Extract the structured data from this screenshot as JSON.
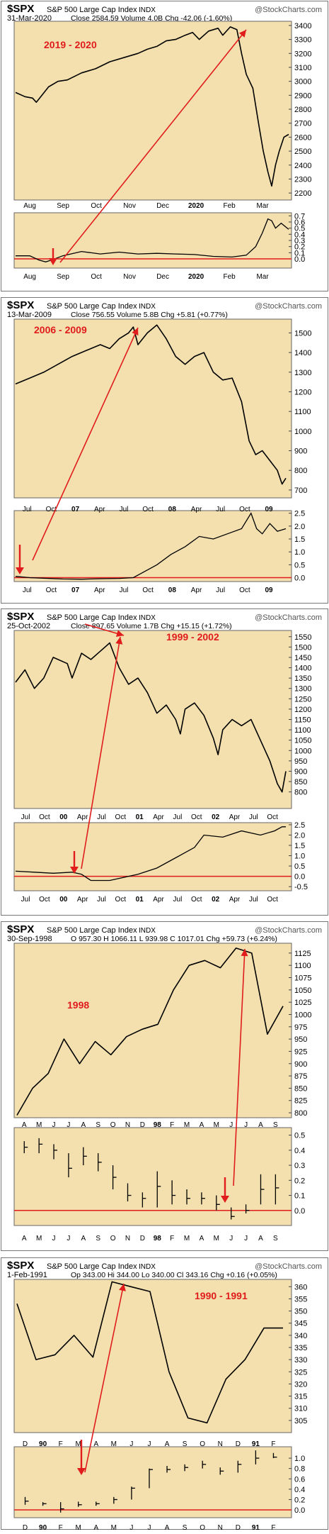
{
  "chart_data": [
    {
      "type": "line",
      "header": {
        "symbol": "$SPX",
        "name": "S&P 500 Large Cap Index",
        "exchange": "INDX",
        "source": "@StockCharts.com",
        "date": "31-Mar-2020",
        "quote": "Close 2584.59  Volume 4.0B  Chg -42.06 (-1.60%)"
      },
      "annotation": "2019 - 2020",
      "price": {
        "ylim": [
          2150,
          3430
        ],
        "ticks": [
          "2200",
          "2300",
          "2400",
          "2500",
          "2600",
          "2700",
          "2800",
          "2900",
          "3000",
          "3100",
          "3200",
          "3300",
          "3400"
        ],
        "x_labels": [
          "Aug",
          "Sep",
          "Oct",
          "Nov",
          "Dec",
          "2020",
          "Feb",
          "Mar"
        ],
        "series": [
          [
            0,
            2920
          ],
          [
            10,
            2890
          ],
          [
            18,
            2880
          ],
          [
            22,
            2850
          ],
          [
            28,
            2900
          ],
          [
            35,
            2960
          ],
          [
            45,
            3000
          ],
          [
            55,
            3010
          ],
          [
            70,
            3060
          ],
          [
            85,
            3090
          ],
          [
            100,
            3140
          ],
          [
            115,
            3170
          ],
          [
            130,
            3200
          ],
          [
            140,
            3230
          ],
          [
            150,
            3250
          ],
          [
            160,
            3290
          ],
          [
            170,
            3300
          ],
          [
            180,
            3330
          ],
          [
            188,
            3350
          ],
          [
            195,
            3300
          ],
          [
            205,
            3360
          ],
          [
            215,
            3380
          ],
          [
            220,
            3330
          ],
          [
            228,
            3390
          ],
          [
            235,
            3370
          ],
          [
            240,
            3200
          ],
          [
            245,
            3050
          ],
          [
            252,
            2950
          ],
          [
            258,
            2700
          ],
          [
            263,
            2500
          ],
          [
            268,
            2350
          ],
          [
            272,
            2250
          ],
          [
            276,
            2400
          ],
          [
            280,
            2500
          ],
          [
            285,
            2600
          ],
          [
            290,
            2620
          ]
        ]
      },
      "indicator": {
        "ylim": [
          -0.15,
          0.75
        ],
        "ticks": [
          "0.0",
          "0.1",
          "0.2",
          "0.3",
          "0.4",
          "0.5",
          "0.6",
          "0.7"
        ],
        "x_labels": [
          "Aug",
          "Sep",
          "Oct",
          "Nov",
          "Dec",
          "2020",
          "Feb",
          "Mar"
        ],
        "reference": 0,
        "series": [
          [
            0,
            0.05
          ],
          [
            15,
            0.05
          ],
          [
            25,
            -0.02
          ],
          [
            32,
            -0.05
          ],
          [
            40,
            -0.01
          ],
          [
            50,
            0.05
          ],
          [
            70,
            0.12
          ],
          [
            90,
            0.08
          ],
          [
            110,
            0.11
          ],
          [
            130,
            0.08
          ],
          [
            150,
            0.09
          ],
          [
            170,
            0.08
          ],
          [
            190,
            0.07
          ],
          [
            210,
            0.04
          ],
          [
            230,
            0.03
          ],
          [
            245,
            0.06
          ],
          [
            255,
            0.2
          ],
          [
            262,
            0.42
          ],
          [
            268,
            0.65
          ],
          [
            272,
            0.62
          ],
          [
            276,
            0.5
          ],
          [
            282,
            0.58
          ],
          [
            290,
            0.48
          ]
        ]
      }
    },
    {
      "type": "line",
      "header": {
        "symbol": "$SPX",
        "name": "S&P 500 Large Cap Index",
        "exchange": "INDX",
        "source": "@StockCharts.com",
        "date": "13-Mar-2009",
        "quote": "Close 756.55  Volume 5.8B  Chg +5.81 (+0.77%)"
      },
      "annotation": "2006 - 2009",
      "price": {
        "ylim": [
          660,
          1570
        ],
        "ticks": [
          "700",
          "800",
          "900",
          "1000",
          "1100",
          "1200",
          "1300",
          "1400",
          "1500"
        ],
        "x_labels": [
          "Jul",
          "Oct",
          "07",
          "Apr",
          "Jul",
          "Oct",
          "08",
          "Apr",
          "Jul",
          "Oct",
          "09"
        ],
        "series": [
          [
            0,
            1240
          ],
          [
            15,
            1270
          ],
          [
            30,
            1300
          ],
          [
            45,
            1340
          ],
          [
            60,
            1380
          ],
          [
            75,
            1410
          ],
          [
            90,
            1440
          ],
          [
            100,
            1420
          ],
          [
            110,
            1470
          ],
          [
            120,
            1500
          ],
          [
            125,
            1530
          ],
          [
            130,
            1440
          ],
          [
            140,
            1500
          ],
          [
            150,
            1540
          ],
          [
            160,
            1470
          ],
          [
            170,
            1380
          ],
          [
            180,
            1340
          ],
          [
            190,
            1380
          ],
          [
            200,
            1400
          ],
          [
            210,
            1300
          ],
          [
            220,
            1260
          ],
          [
            230,
            1270
          ],
          [
            240,
            1150
          ],
          [
            248,
            950
          ],
          [
            255,
            880
          ],
          [
            262,
            900
          ],
          [
            270,
            850
          ],
          [
            278,
            800
          ],
          [
            283,
            730
          ],
          [
            287,
            760
          ]
        ]
      },
      "indicator": {
        "ylim": [
          -0.15,
          2.6
        ],
        "ticks": [
          "0.0",
          "0.5",
          "1.0",
          "1.5",
          "2.0",
          "2.5"
        ],
        "x_labels": [
          "Jul",
          "Oct",
          "07",
          "Apr",
          "Jul",
          "Oct",
          "08",
          "Apr",
          "Jul",
          "Oct",
          "09"
        ],
        "reference": 0,
        "series": [
          [
            0,
            0.05
          ],
          [
            15,
            0
          ],
          [
            30,
            -0.02
          ],
          [
            50,
            -0.05
          ],
          [
            70,
            -0.06
          ],
          [
            90,
            -0.04
          ],
          [
            110,
            -0.03
          ],
          [
            125,
            0
          ],
          [
            135,
            0.2
          ],
          [
            150,
            0.5
          ],
          [
            165,
            0.9
          ],
          [
            180,
            1.2
          ],
          [
            195,
            1.6
          ],
          [
            210,
            1.5
          ],
          [
            225,
            1.7
          ],
          [
            240,
            1.9
          ],
          [
            250,
            2.5
          ],
          [
            256,
            1.9
          ],
          [
            262,
            1.7
          ],
          [
            270,
            2.1
          ],
          [
            278,
            1.8
          ],
          [
            287,
            1.9
          ]
        ]
      }
    },
    {
      "type": "line",
      "header": {
        "symbol": "$SPX",
        "name": "S&P 500 Large Cap Index",
        "exchange": "INDX",
        "source": "@StockCharts.com",
        "date": "25-Oct-2002",
        "quote": "Close 897.65  Volume 1.7B  Chg +15.15 (+1.72%)"
      },
      "annotation": "1999 - 2002",
      "price": {
        "ylim": [
          720,
          1580
        ],
        "ticks": [
          "800",
          "850",
          "900",
          "950",
          "1000",
          "1050",
          "1100",
          "1150",
          "1200",
          "1250",
          "1300",
          "1350",
          "1400",
          "1450",
          "1500",
          "1550"
        ],
        "x_labels": [
          "Jul",
          "Oct",
          "00",
          "Apr",
          "Jul",
          "Oct",
          "01",
          "Apr",
          "Jul",
          "Oct",
          "02",
          "Apr",
          "Jul",
          "Oct"
        ],
        "series": [
          [
            0,
            1330
          ],
          [
            10,
            1390
          ],
          [
            20,
            1300
          ],
          [
            30,
            1350
          ],
          [
            40,
            1450
          ],
          [
            55,
            1420
          ],
          [
            60,
            1350
          ],
          [
            70,
            1470
          ],
          [
            80,
            1440
          ],
          [
            90,
            1480
          ],
          [
            100,
            1520
          ],
          [
            110,
            1400
          ],
          [
            120,
            1320
          ],
          [
            130,
            1350
          ],
          [
            140,
            1280
          ],
          [
            150,
            1180
          ],
          [
            160,
            1220
          ],
          [
            170,
            1150
          ],
          [
            175,
            1080
          ],
          [
            180,
            1200
          ],
          [
            190,
            1230
          ],
          [
            200,
            1170
          ],
          [
            210,
            1060
          ],
          [
            215,
            980
          ],
          [
            220,
            1100
          ],
          [
            230,
            1150
          ],
          [
            240,
            1120
          ],
          [
            250,
            1150
          ],
          [
            260,
            1050
          ],
          [
            270,
            950
          ],
          [
            278,
            840
          ],
          [
            283,
            800
          ],
          [
            287,
            900
          ]
        ]
      },
      "indicator": {
        "ylim": [
          -0.7,
          2.6
        ],
        "ticks": [
          "-0.5",
          "0.0",
          "0.5",
          "1.0",
          "1.5",
          "2.0",
          "2.5"
        ],
        "x_labels": [
          "Jul",
          "Oct",
          "00",
          "Apr",
          "Jul",
          "Oct",
          "01",
          "Apr",
          "Jul",
          "Oct",
          "02",
          "Apr",
          "Jul",
          "Oct"
        ],
        "reference": 0,
        "series": [
          [
            0,
            0.25
          ],
          [
            20,
            0.2
          ],
          [
            40,
            0.15
          ],
          [
            60,
            0.2
          ],
          [
            70,
            0.1
          ],
          [
            80,
            -0.2
          ],
          [
            100,
            -0.2
          ],
          [
            130,
            0.1
          ],
          [
            150,
            0.4
          ],
          [
            170,
            0.9
          ],
          [
            190,
            1.4
          ],
          [
            200,
            2.0
          ],
          [
            220,
            1.9
          ],
          [
            240,
            2.2
          ],
          [
            260,
            2.0
          ],
          [
            275,
            2.2
          ],
          [
            283,
            2.4
          ],
          [
            287,
            2.4
          ]
        ]
      }
    },
    {
      "type": "line",
      "header": {
        "symbol": "$SPX",
        "name": "S&P 500 Large Cap Index",
        "exchange": "INDX",
        "source": "@StockCharts.com",
        "date": "30-Sep-1998",
        "quote": "O 957.30  H 1066.11  L 939.98  C 1017.01  Chg +59.73 (+6.24%)"
      },
      "annotation": "1998",
      "price": {
        "ylim": [
          790,
          1145
        ],
        "ticks": [
          "800",
          "825",
          "850",
          "875",
          "900",
          "925",
          "950",
          "975",
          "1000",
          "1025",
          "1050",
          "1075",
          "1100",
          "1125"
        ],
        "x_labels": [
          "A",
          "M",
          "J",
          "J",
          "A",
          "S",
          "O",
          "N",
          "D",
          "98",
          "F",
          "M",
          "A",
          "M",
          "J",
          "J",
          "A",
          "S"
        ],
        "values": [
          795,
          850,
          880,
          950,
          900,
          945,
          918,
          955,
          970,
          980,
          1050,
          1100,
          1110,
          1095,
          1135,
          1125,
          960,
          1017
        ]
      },
      "indicator": {
        "ylim": [
          -0.1,
          0.55
        ],
        "ticks": [
          "0.0",
          "0.1",
          "0.2",
          "0.3",
          "0.4",
          "0.5"
        ],
        "x_labels": [
          "A",
          "M",
          "J",
          "J",
          "A",
          "S",
          "O",
          "N",
          "D",
          "98",
          "F",
          "M",
          "A",
          "M",
          "J",
          "J",
          "A",
          "S"
        ],
        "reference": 0,
        "bars": [
          [
            0.38,
            0.46,
            0.42
          ],
          [
            0.38,
            0.48,
            0.44
          ],
          [
            0.34,
            0.44,
            0.4
          ],
          [
            0.22,
            0.38,
            0.28
          ],
          [
            0.3,
            0.42,
            0.36
          ],
          [
            0.26,
            0.38,
            0.32
          ],
          [
            0.14,
            0.3,
            0.22
          ],
          [
            0.06,
            0.18,
            0.1
          ],
          [
            0.02,
            0.12,
            0.08
          ],
          [
            0.02,
            0.26,
            0.16
          ],
          [
            0.04,
            0.2,
            0.1
          ],
          [
            0.04,
            0.14,
            0.08
          ],
          [
            0.04,
            0.12,
            0.08
          ],
          [
            0.0,
            0.1,
            0.04
          ],
          [
            -0.06,
            0.02,
            -0.04
          ],
          [
            -0.02,
            0.04,
            0.0
          ],
          [
            0.04,
            0.24,
            0.14
          ],
          [
            0.04,
            0.24,
            0.15
          ]
        ]
      }
    },
    {
      "type": "line",
      "header": {
        "symbol": "$SPX",
        "name": "S&P 500 Large Cap Index",
        "exchange": "INDX",
        "source": "@StockCharts.com",
        "date": "1-Feb-1991",
        "quote": "Op 343.00  Hi 344.00  Lo 340.00  Cl 343.16  Chg +0.16 (+0.05%)"
      },
      "annotation": "1990 - 1991",
      "price": {
        "ylim": [
          300,
          363
        ],
        "ticks": [
          "305",
          "310",
          "315",
          "320",
          "325",
          "330",
          "335",
          "340",
          "345",
          "350",
          "355",
          "360"
        ],
        "x_labels": [
          "D",
          "90",
          "F",
          "M",
          "A",
          "M",
          "J",
          "J",
          "A",
          "S",
          "O",
          "N",
          "D",
          "91",
          "F"
        ],
        "values": [
          353,
          330,
          332,
          340,
          331,
          362,
          360,
          358,
          325,
          306,
          304,
          322,
          330,
          343,
          343
        ]
      },
      "indicator": {
        "ylim": [
          -0.15,
          1.22
        ],
        "ticks": [
          "0.0",
          "0.2",
          "0.4",
          "0.6",
          "0.8",
          "1.0"
        ],
        "x_labels": [
          "D",
          "90",
          "F",
          "M",
          "A",
          "M",
          "J",
          "J",
          "A",
          "S",
          "O",
          "N",
          "D",
          "91",
          "F"
        ],
        "reference": 0,
        "bars": [
          [
            0.1,
            0.25,
            0.17
          ],
          [
            0.08,
            0.15,
            0.12
          ],
          [
            -0.05,
            0.15,
            0.02
          ],
          [
            0.06,
            0.16,
            0.1
          ],
          [
            0.08,
            0.16,
            0.12
          ],
          [
            0.12,
            0.25,
            0.2
          ],
          [
            0.2,
            0.45,
            0.42
          ],
          [
            0.42,
            0.8,
            0.78
          ],
          [
            0.72,
            0.85,
            0.78
          ],
          [
            0.75,
            0.88,
            0.82
          ],
          [
            0.8,
            0.95,
            0.88
          ],
          [
            0.68,
            0.82,
            0.75
          ],
          [
            0.72,
            0.95,
            0.88
          ],
          [
            0.88,
            1.15,
            1.0
          ],
          [
            1.0,
            1.1,
            1.02
          ]
        ]
      }
    }
  ]
}
